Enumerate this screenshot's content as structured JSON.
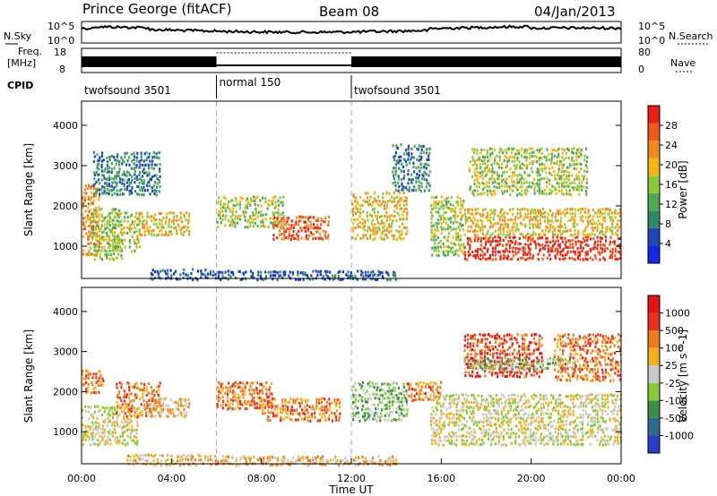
{
  "header": {
    "title": "Prince George (fitACF)",
    "beam": "Beam 08",
    "date": "04/Jan/2013"
  },
  "strip": {
    "nsky_label": "N.Sky",
    "nsky_ticks": [
      "10^5",
      "10^0"
    ],
    "nsearch_label": "N.Search",
    "nsearch_ticks": [
      "10^5",
      "10^0"
    ],
    "freq_label": "Freq.",
    "freq_unit": "[MHz]",
    "freq_ticks": [
      "18",
      "8"
    ],
    "nave_label": "Nave",
    "nave_ticks": [
      "80",
      "0"
    ],
    "cpid_label": "CPID",
    "cpid_segments": [
      {
        "label": "twofsound 3501",
        "start_hr": 0,
        "end_hr": 6
      },
      {
        "label": "normal 150",
        "start_hr": 6,
        "end_hr": 12
      },
      {
        "label": "twofsound 3501",
        "start_hr": 12,
        "end_hr": 24
      }
    ]
  },
  "chart_data": [
    {
      "type": "heatmap",
      "name": "power",
      "ylabel": "Slant Range [km]",
      "yticks": [
        "1000",
        "2000",
        "3000",
        "4000"
      ],
      "ylim": [
        200,
        4600
      ],
      "xlim": [
        0,
        24
      ],
      "colorbar_label": "Power [dB]",
      "colorbar_ticks": [
        "4",
        "8",
        "12",
        "16",
        "20",
        "24",
        "28"
      ],
      "colors": [
        "#1428e6",
        "#2246b8",
        "#2f8a68",
        "#4fa854",
        "#8cc83a",
        "#f0b414",
        "#f08a1e",
        "#ee5a1c",
        "#e82014"
      ],
      "regions": [
        {
          "t0": 0.0,
          "t1": 0.8,
          "r0": 800,
          "r1": 2600,
          "level": 6
        },
        {
          "t0": 0.3,
          "t1": 1.8,
          "r0": 700,
          "r1": 2000,
          "level": 4
        },
        {
          "t0": 1.2,
          "t1": 2.6,
          "r0": 900,
          "r1": 1900,
          "level": 4
        },
        {
          "t0": 2.5,
          "t1": 4.8,
          "r0": 1300,
          "r1": 1900,
          "level": 5
        },
        {
          "t0": 0.5,
          "t1": 3.5,
          "r0": 2300,
          "r1": 3400,
          "level": 2
        },
        {
          "t0": 3.0,
          "t1": 6.0,
          "r0": 200,
          "r1": 500,
          "level": 1
        },
        {
          "t0": 6.0,
          "t1": 9.0,
          "r0": 1500,
          "r1": 2300,
          "level": 4
        },
        {
          "t0": 8.5,
          "t1": 11.0,
          "r0": 1200,
          "r1": 1800,
          "level": 7
        },
        {
          "t0": 12.0,
          "t1": 14.5,
          "r0": 1200,
          "r1": 2400,
          "level": 5
        },
        {
          "t0": 13.8,
          "t1": 15.5,
          "r0": 2400,
          "r1": 3600,
          "level": 2
        },
        {
          "t0": 15.5,
          "t1": 17.0,
          "r0": 800,
          "r1": 2300,
          "level": 4
        },
        {
          "t0": 17.0,
          "t1": 24.0,
          "r0": 700,
          "r1": 1300,
          "level": 8
        },
        {
          "t0": 17.0,
          "t1": 24.0,
          "r0": 1300,
          "r1": 2000,
          "level": 5
        },
        {
          "t0": 17.2,
          "t1": 22.5,
          "r0": 2300,
          "r1": 3500,
          "level": 4
        },
        {
          "t0": 6.0,
          "t1": 14.0,
          "r0": 200,
          "r1": 450,
          "level": 1
        }
      ]
    },
    {
      "type": "heatmap",
      "name": "velocity",
      "ylabel": "Slant Range [km]",
      "yticks": [
        "1000",
        "2000",
        "3000",
        "4000"
      ],
      "ylim": [
        200,
        4600
      ],
      "xlim": [
        0,
        24
      ],
      "xlabel": "Time UT",
      "xticks": [
        "00:00",
        "04:00",
        "08:00",
        "12:00",
        "16:00",
        "20:00",
        "00:00"
      ],
      "colorbar_label": "Velocity [m s^-1]",
      "colorbar_ticks": [
        "1000",
        "500",
        "100",
        "25",
        "-25",
        "-100",
        "-500",
        "-1000"
      ],
      "colors": [
        "#2a3cc8",
        "#2e6a8a",
        "#3c8c4a",
        "#86c83a",
        "#c8c8c8",
        "#f0b020",
        "#ee7a1e",
        "#e8301c",
        "#e01414"
      ],
      "regions": [
        {
          "t0": 0.0,
          "t1": 1.0,
          "r0": 2000,
          "r1": 2600,
          "level": 6
        },
        {
          "t0": 0.0,
          "t1": 2.5,
          "r0": 700,
          "r1": 1700,
          "level": 4
        },
        {
          "t0": 1.5,
          "t1": 3.5,
          "r0": 1400,
          "r1": 2300,
          "level": 6
        },
        {
          "t0": 3.0,
          "t1": 4.8,
          "r0": 1400,
          "r1": 1900,
          "level": 5
        },
        {
          "t0": 2.0,
          "t1": 6.0,
          "r0": 200,
          "r1": 500,
          "level": 5
        },
        {
          "t0": 6.0,
          "t1": 8.5,
          "r0": 1600,
          "r1": 2300,
          "level": 6
        },
        {
          "t0": 8.0,
          "t1": 11.5,
          "r0": 1300,
          "r1": 1900,
          "level": 6
        },
        {
          "t0": 12.0,
          "t1": 14.5,
          "r0": 1300,
          "r1": 2300,
          "level": 3
        },
        {
          "t0": 14.5,
          "t1": 16.0,
          "r0": 1800,
          "r1": 2300,
          "level": 6
        },
        {
          "t0": 15.5,
          "t1": 24.0,
          "r0": 700,
          "r1": 2000,
          "level": 4
        },
        {
          "t0": 17.0,
          "t1": 20.5,
          "r0": 2400,
          "r1": 3500,
          "level": 7
        },
        {
          "t0": 17.0,
          "t1": 22.0,
          "r0": 2600,
          "r1": 2900,
          "level": 3
        },
        {
          "t0": 21.0,
          "t1": 24.0,
          "r0": 2300,
          "r1": 3500,
          "level": 6
        },
        {
          "t0": 6.0,
          "t1": 14.0,
          "r0": 200,
          "r1": 450,
          "level": 5
        }
      ]
    }
  ]
}
